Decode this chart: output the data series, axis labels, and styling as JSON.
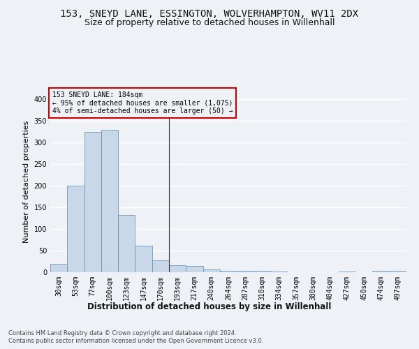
{
  "title_line1": "153, SNEYD LANE, ESSINGTON, WOLVERHAMPTON, WV11 2DX",
  "title_line2": "Size of property relative to detached houses in Willenhall",
  "xlabel": "Distribution of detached houses by size in Willenhall",
  "ylabel": "Number of detached properties",
  "footer_line1": "Contains HM Land Registry data © Crown copyright and database right 2024.",
  "footer_line2": "Contains public sector information licensed under the Open Government Licence v3.0.",
  "bar_color": "#c8d8e8",
  "bar_edge_color": "#5a8ab0",
  "annotation_box_color": "#cc0000",
  "vline_color": "#333333",
  "annotation_text_line1": "153 SNEYD LANE: 184sqm",
  "annotation_text_line2": "← 95% of detached houses are smaller (1,075)",
  "annotation_text_line3": "4% of semi-detached houses are larger (50) →",
  "bin_labels": [
    "30sqm",
    "53sqm",
    "77sqm",
    "100sqm",
    "123sqm",
    "147sqm",
    "170sqm",
    "193sqm",
    "217sqm",
    "240sqm",
    "264sqm",
    "287sqm",
    "310sqm",
    "334sqm",
    "357sqm",
    "380sqm",
    "404sqm",
    "427sqm",
    "450sqm",
    "474sqm",
    "497sqm"
  ],
  "counts": [
    20,
    200,
    325,
    330,
    133,
    61,
    28,
    16,
    15,
    6,
    4,
    3,
    3,
    1,
    0,
    0,
    0,
    1,
    0,
    3,
    4
  ],
  "ylim": [
    0,
    420
  ],
  "yticks": [
    0,
    50,
    100,
    150,
    200,
    250,
    300,
    350,
    400
  ],
  "bg_color": "#eef2f7",
  "grid_color": "#ffffff",
  "title_fontsize": 10,
  "subtitle_fontsize": 9,
  "ylabel_fontsize": 8,
  "tick_fontsize": 7,
  "annotation_fontsize": 7,
  "xlabel_fontsize": 8.5,
  "footer_fontsize": 6
}
